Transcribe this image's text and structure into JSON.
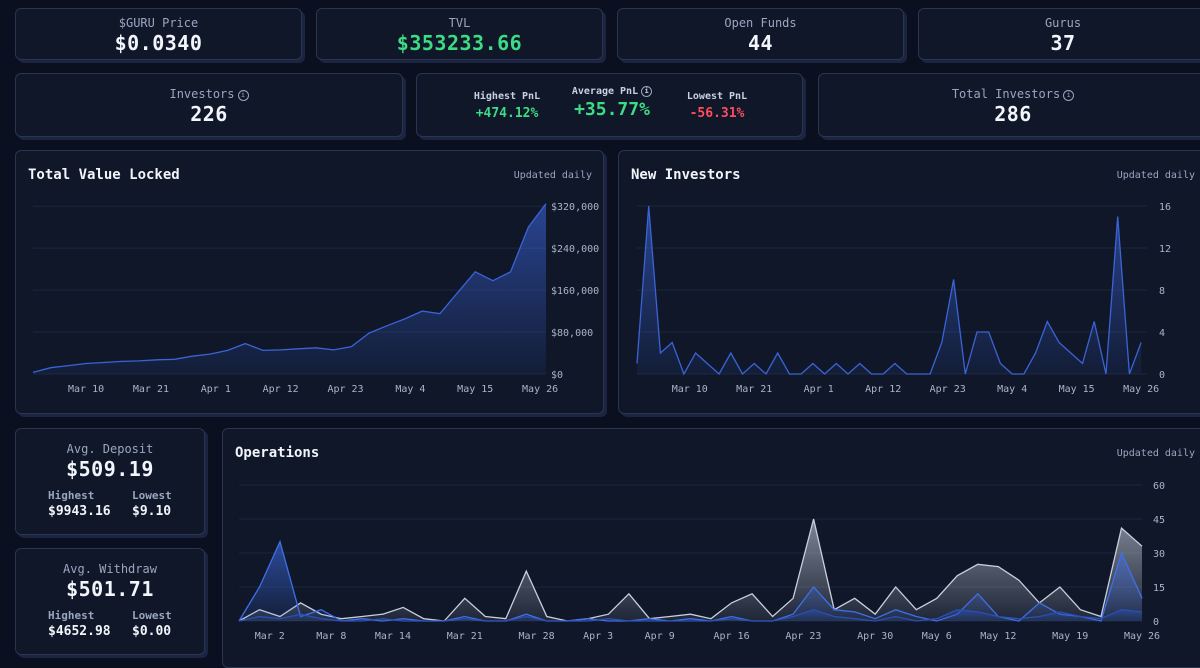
{
  "cards": {
    "price": {
      "label": "$GURU Price",
      "value": "$0.0340"
    },
    "tvl": {
      "label": "TVL",
      "value": "$353233.66"
    },
    "open_funds": {
      "label": "Open Funds",
      "value": "44"
    },
    "gurus": {
      "label": "Gurus",
      "value": "37"
    },
    "investors": {
      "label": "Investors",
      "value": "226"
    },
    "pnl": {
      "highest_label": "Highest PnL",
      "highest": "+474.12%",
      "average_label": "Average PnL",
      "average": "+35.77%",
      "lowest_label": "Lowest PnL",
      "lowest": "-56.31%"
    },
    "total_investors": {
      "label": "Total Investors",
      "value": "286"
    },
    "deposit": {
      "label": "Avg. Deposit",
      "value": "$509.19",
      "highest_label": "Highest",
      "highest": "$9943.16",
      "lowest_label": "Lowest",
      "lowest": "$9.10"
    },
    "withdraw": {
      "label": "Avg. Withdraw",
      "value": "$501.71",
      "highest_label": "Highest",
      "highest": "$4652.98",
      "lowest_label": "Lowest",
      "lowest": "$0.00"
    }
  },
  "chart_data": [
    {
      "type": "area",
      "title": "Total Value Locked",
      "note": "Updated daily",
      "x": [
        0,
        3,
        6,
        9,
        12,
        15,
        18,
        21,
        24,
        27,
        30,
        33,
        36,
        39,
        42,
        45,
        48,
        51,
        54,
        57,
        60,
        63,
        66,
        69,
        72,
        75,
        78,
        81,
        84,
        87
      ],
      "xlim": [
        0,
        87
      ],
      "xticks": [
        {
          "value": 9,
          "label": "Mar 10"
        },
        {
          "value": 20,
          "label": "Mar 21"
        },
        {
          "value": 31,
          "label": "Apr 1"
        },
        {
          "value": 42,
          "label": "Apr 12"
        },
        {
          "value": 53,
          "label": "Apr 23"
        },
        {
          "value": 64,
          "label": "May 4"
        },
        {
          "value": 75,
          "label": "May 15"
        },
        {
          "value": 86,
          "label": "May 26"
        }
      ],
      "ylim": [
        0,
        330000
      ],
      "yticks": [
        {
          "value": 0,
          "label": "$0"
        },
        {
          "value": 80000,
          "label": "$80,000"
        },
        {
          "value": 160000,
          "label": "$160,000"
        },
        {
          "value": 240000,
          "label": "$240,000"
        },
        {
          "value": 320000,
          "label": "$320,000"
        }
      ],
      "grid": true,
      "series": [
        {
          "color": "#3b63d6",
          "values": [
            3000,
            12000,
            16000,
            20000,
            22000,
            24000,
            25000,
            27000,
            28000,
            34000,
            38000,
            45000,
            58000,
            45000,
            46000,
            48000,
            50000,
            46000,
            52000,
            78000,
            92000,
            105000,
            120000,
            115000,
            155000,
            195000,
            178000,
            195000,
            280000,
            325000
          ]
        }
      ]
    },
    {
      "type": "area",
      "title": "New Investors",
      "note": "Updated daily",
      "x": [
        0,
        2,
        4,
        6,
        8,
        10,
        12,
        14,
        16,
        18,
        20,
        22,
        24,
        26,
        28,
        30,
        32,
        34,
        36,
        38,
        40,
        42,
        44,
        46,
        48,
        50,
        52,
        54,
        56,
        58,
        60,
        62,
        64,
        66,
        68,
        70,
        72,
        74,
        76,
        78,
        80,
        82,
        84,
        86
      ],
      "xlim": [
        0,
        87
      ],
      "xticks": [
        {
          "value": 9,
          "label": "Mar 10"
        },
        {
          "value": 20,
          "label": "Mar 21"
        },
        {
          "value": 31,
          "label": "Apr 1"
        },
        {
          "value": 42,
          "label": "Apr 12"
        },
        {
          "value": 53,
          "label": "Apr 23"
        },
        {
          "value": 64,
          "label": "May 4"
        },
        {
          "value": 75,
          "label": "May 15"
        },
        {
          "value": 86,
          "label": "May 26"
        }
      ],
      "ylim": [
        0,
        16
      ],
      "yticks": [
        0,
        4,
        8,
        12,
        16
      ],
      "grid": true,
      "series": [
        {
          "color": "#3b63d6",
          "values": [
            1,
            16,
            2,
            3,
            0,
            2,
            1,
            0,
            2,
            0,
            1,
            0,
            2,
            0,
            0,
            1,
            0,
            1,
            0,
            1,
            0,
            0,
            1,
            0,
            0,
            0,
            3,
            9,
            0,
            4,
            4,
            1,
            0,
            0,
            2,
            5,
            3,
            2,
            1,
            5,
            0,
            15,
            0,
            3
          ]
        }
      ]
    },
    {
      "type": "area",
      "title": "Operations",
      "note": "Updated daily",
      "x": [
        -2,
        0,
        2,
        4,
        6,
        8,
        10,
        12,
        14,
        16,
        18,
        20,
        22,
        24,
        26,
        28,
        30,
        32,
        34,
        36,
        38,
        40,
        42,
        44,
        46,
        48,
        50,
        52,
        54,
        56,
        58,
        60,
        62,
        64,
        66,
        68,
        70,
        72,
        74,
        76,
        78,
        80,
        82,
        84,
        86
      ],
      "xlim": [
        -2,
        86
      ],
      "xticks": [
        {
          "value": 1,
          "label": "Mar 2"
        },
        {
          "value": 7,
          "label": "Mar 8"
        },
        {
          "value": 13,
          "label": "Mar 14"
        },
        {
          "value": 20,
          "label": "Mar 21"
        },
        {
          "value": 27,
          "label": "Mar 28"
        },
        {
          "value": 33,
          "label": "Apr 3"
        },
        {
          "value": 39,
          "label": "Apr 9"
        },
        {
          "value": 46,
          "label": "Apr 16"
        },
        {
          "value": 53,
          "label": "Apr 23"
        },
        {
          "value": 60,
          "label": "Apr 30"
        },
        {
          "value": 66,
          "label": "May 6"
        },
        {
          "value": 72,
          "label": "May 12"
        },
        {
          "value": 79,
          "label": "May 19"
        },
        {
          "value": 86,
          "label": "May 26"
        }
      ],
      "ylim": [
        0,
        60
      ],
      "yticks": [
        0,
        15,
        30,
        45,
        60
      ],
      "grid": true,
      "series": [
        {
          "color": "#c9cfdc",
          "values": [
            0,
            5,
            2,
            8,
            3,
            1,
            2,
            3,
            6,
            1,
            0,
            10,
            2,
            1,
            22,
            2,
            0,
            1,
            3,
            12,
            1,
            2,
            3,
            1,
            8,
            12,
            2,
            10,
            45,
            5,
            10,
            3,
            15,
            5,
            10,
            20,
            25,
            24,
            18,
            8,
            15,
            5,
            2,
            41,
            33
          ]
        },
        {
          "color": "#3f6fe8",
          "values": [
            0,
            15,
            35,
            2,
            5,
            0,
            1,
            0,
            1,
            0,
            0,
            2,
            0,
            0,
            3,
            0,
            0,
            1,
            0,
            0,
            1,
            0,
            1,
            0,
            2,
            0,
            0,
            3,
            15,
            5,
            4,
            1,
            5,
            2,
            0,
            3,
            12,
            2,
            0,
            8,
            3,
            2,
            0,
            30,
            10
          ]
        },
        {
          "color": "#2a4fb0",
          "values": [
            0,
            2,
            1,
            3,
            1,
            0,
            0,
            1,
            0,
            0,
            0,
            1,
            0,
            0,
            2,
            0,
            0,
            0,
            1,
            0,
            0,
            0,
            0,
            0,
            1,
            0,
            0,
            2,
            5,
            2,
            1,
            0,
            2,
            0,
            1,
            5,
            4,
            2,
            1,
            2,
            4,
            2,
            1,
            5,
            4
          ]
        }
      ]
    }
  ]
}
